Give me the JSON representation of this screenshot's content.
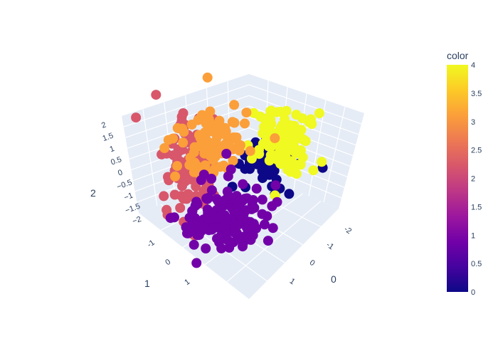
{
  "chart_data": {
    "type": "scatter3d",
    "axes": {
      "x": {
        "title": "0",
        "ticks": [
          "-2",
          "-1",
          "0",
          "1"
        ]
      },
      "y": {
        "title": "1",
        "ticks": [
          "-1",
          "0",
          "1"
        ]
      },
      "z": {
        "title": "2",
        "ticks": [
          "2",
          "1.5",
          "1",
          "0.5",
          "0",
          "−0.5",
          "−1",
          "−1.5",
          "−2"
        ]
      }
    },
    "colorbar": {
      "title": "color",
      "range": [
        0,
        4
      ],
      "ticks": [
        "4",
        "3.5",
        "3",
        "2.5",
        "2",
        "1.5",
        "1",
        "0.5",
        "0"
      ],
      "colorscale": [
        "#0d0887",
        "#46039f",
        "#7201a8",
        "#9c179e",
        "#bd3786",
        "#d8576b",
        "#ed7953",
        "#fb9f3a",
        "#fdca26",
        "#f0f921"
      ]
    },
    "clusters": [
      {
        "color_value": 0,
        "hex": "#0d0887",
        "x": [
          -0.2,
          0.1,
          0.3,
          -0.4,
          0.2
        ],
        "y": [
          0.4,
          0.6,
          0.2,
          0.5,
          0.8
        ],
        "z": [
          0.3,
          0.1,
          -0.2,
          0.5,
          0.0
        ]
      },
      {
        "color_value": 1,
        "hex": "#7201a8",
        "x": [
          0.6,
          0.9,
          1.1,
          0.4,
          0.8
        ],
        "y": [
          0.8,
          1.1,
          0.9,
          1.2,
          0.6
        ],
        "z": [
          -1.0,
          -1.4,
          -0.6,
          -1.8,
          -0.9
        ]
      },
      {
        "color_value": 2,
        "hex": "#d8576b",
        "x": [
          1.2,
          1.5,
          1.0,
          1.4,
          1.6
        ],
        "y": [
          -0.6,
          -0.3,
          -0.9,
          -0.2,
          -0.7
        ],
        "z": [
          0.2,
          0.6,
          -0.3,
          0.9,
          0.0
        ]
      },
      {
        "color_value": 3,
        "hex": "#fb9f3a",
        "x": [
          0.5,
          0.8,
          1.0,
          0.3,
          0.7
        ],
        "y": [
          -0.3,
          0.0,
          -0.5,
          0.2,
          -0.1
        ],
        "z": [
          1.3,
          1.6,
          1.1,
          1.8,
          1.4
        ]
      },
      {
        "color_value": 4,
        "hex": "#f0f921",
        "x": [
          -1.2,
          -1.5,
          -1.0,
          -1.7,
          -1.3
        ],
        "y": [
          0.8,
          1.0,
          0.6,
          1.1,
          0.9
        ],
        "z": [
          0.9,
          1.2,
          0.6,
          1.0,
          1.4
        ]
      }
    ]
  }
}
